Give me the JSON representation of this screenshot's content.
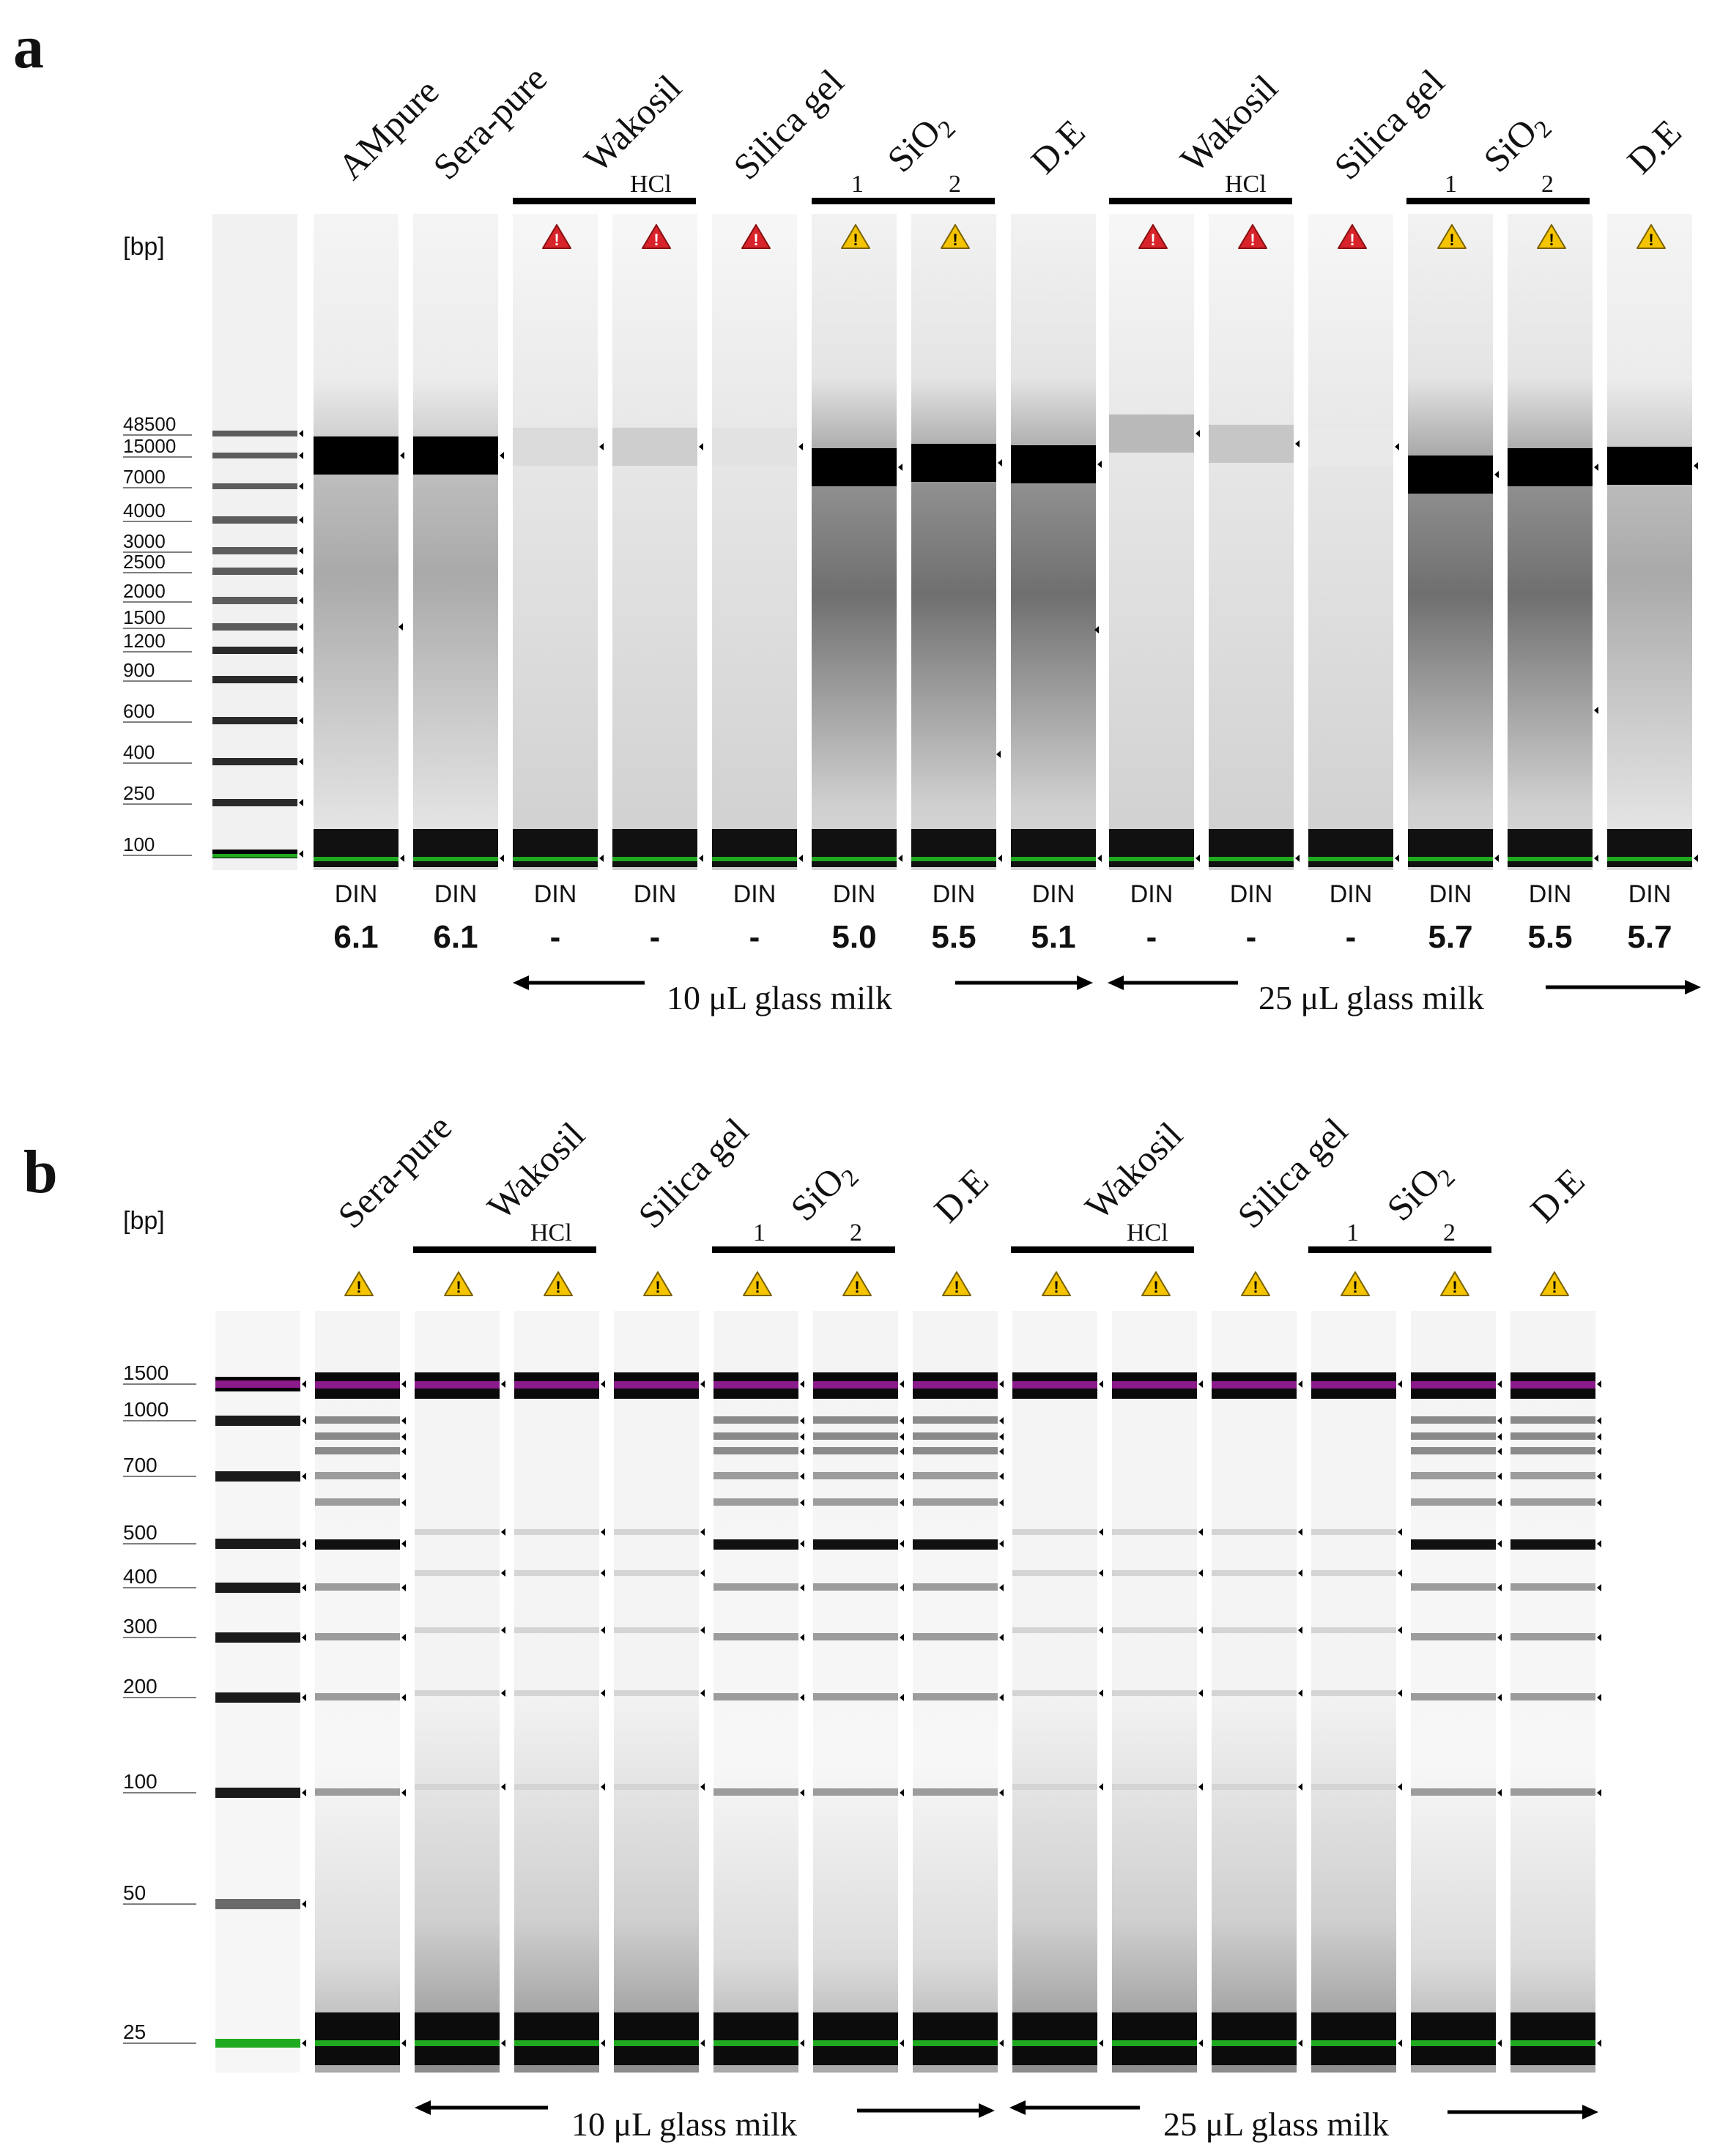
{
  "panel_a": {
    "letter": "a",
    "unit_label": "[bp]",
    "ladder": [
      "48500",
      "15000",
      "7000",
      "4000",
      "3000",
      "2500",
      "2000",
      "1500",
      "1200",
      "900",
      "600",
      "400",
      "250",
      "100"
    ],
    "lanes": [
      {
        "label": "AMpure",
        "warning": "none",
        "din_label": "DIN",
        "din_value": "6.1"
      },
      {
        "label": "Sera-pure",
        "warning": "none",
        "din_label": "DIN",
        "din_value": "6.1"
      },
      {
        "label": "Wakosil",
        "warning": "red",
        "din_label": "DIN",
        "din_value": "-"
      },
      {
        "label": "",
        "warning": "red",
        "din_label": "DIN",
        "din_value": "-"
      },
      {
        "label": "Silica gel",
        "warning": "red",
        "din_label": "DIN",
        "din_value": "-"
      },
      {
        "label": "SiO2",
        "warning": "yellow",
        "din_label": "DIN",
        "din_value": "5.0"
      },
      {
        "label": "",
        "warning": "yellow",
        "din_label": "DIN",
        "din_value": "5.5"
      },
      {
        "label": "D.E",
        "warning": "none",
        "din_label": "DIN",
        "din_value": "5.1"
      },
      {
        "label": "Wakosil",
        "warning": "red",
        "din_label": "DIN",
        "din_value": "-"
      },
      {
        "label": "",
        "warning": "red",
        "din_label": "DIN",
        "din_value": "-"
      },
      {
        "label": "Silica gel",
        "warning": "red",
        "din_label": "DIN",
        "din_value": "-"
      },
      {
        "label": "SiO2",
        "warning": "yellow",
        "din_label": "DIN",
        "din_value": "5.7"
      },
      {
        "label": "",
        "warning": "yellow",
        "din_label": "DIN",
        "din_value": "5.5"
      },
      {
        "label": "D.E",
        "warning": "yellow",
        "din_label": "DIN",
        "din_value": "5.7"
      }
    ],
    "sublabels": {
      "hcl_1": "HCl",
      "hcl_2": "HCl",
      "sio2_1a": "1",
      "sio2_1b": "2",
      "sio2_2a": "1",
      "sio2_2b": "2"
    },
    "group_10": "10 μL glass milk",
    "group_25": "25 μL glass milk"
  },
  "panel_b": {
    "letter": "b",
    "unit_label": "[bp]",
    "ladder": [
      "1500",
      "1000",
      "700",
      "500",
      "400",
      "300",
      "200",
      "100",
      "50",
      "25"
    ],
    "lanes": [
      {
        "label": "Sera-pure",
        "warning": "yellow"
      },
      {
        "label": "Wakosil",
        "warning": "yellow"
      },
      {
        "label": "",
        "warning": "yellow"
      },
      {
        "label": "Silica gel",
        "warning": "yellow"
      },
      {
        "label": "SiO2",
        "warning": "yellow"
      },
      {
        "label": "",
        "warning": "yellow"
      },
      {
        "label": "D.E",
        "warning": "yellow"
      },
      {
        "label": "Wakosil",
        "warning": "yellow"
      },
      {
        "label": "",
        "warning": "yellow"
      },
      {
        "label": "Silica gel",
        "warning": "yellow"
      },
      {
        "label": "SiO2",
        "warning": "yellow"
      },
      {
        "label": "",
        "warning": "yellow"
      },
      {
        "label": "D.E",
        "warning": "yellow"
      }
    ],
    "sublabels": {
      "hcl_1": "HCl",
      "hcl_2": "HCl",
      "sio2_1a": "1",
      "sio2_1b": "2",
      "sio2_2a": "1",
      "sio2_2b": "2"
    },
    "group_10": "10 μL glass milk",
    "group_25": "25 μL glass milk"
  },
  "colors": {
    "marker_green": "#1faa1f",
    "marker_purple": "#8b1a8b",
    "warn_red": "#d8232a",
    "warn_yellow": "#f5c400",
    "band": "#111111"
  }
}
